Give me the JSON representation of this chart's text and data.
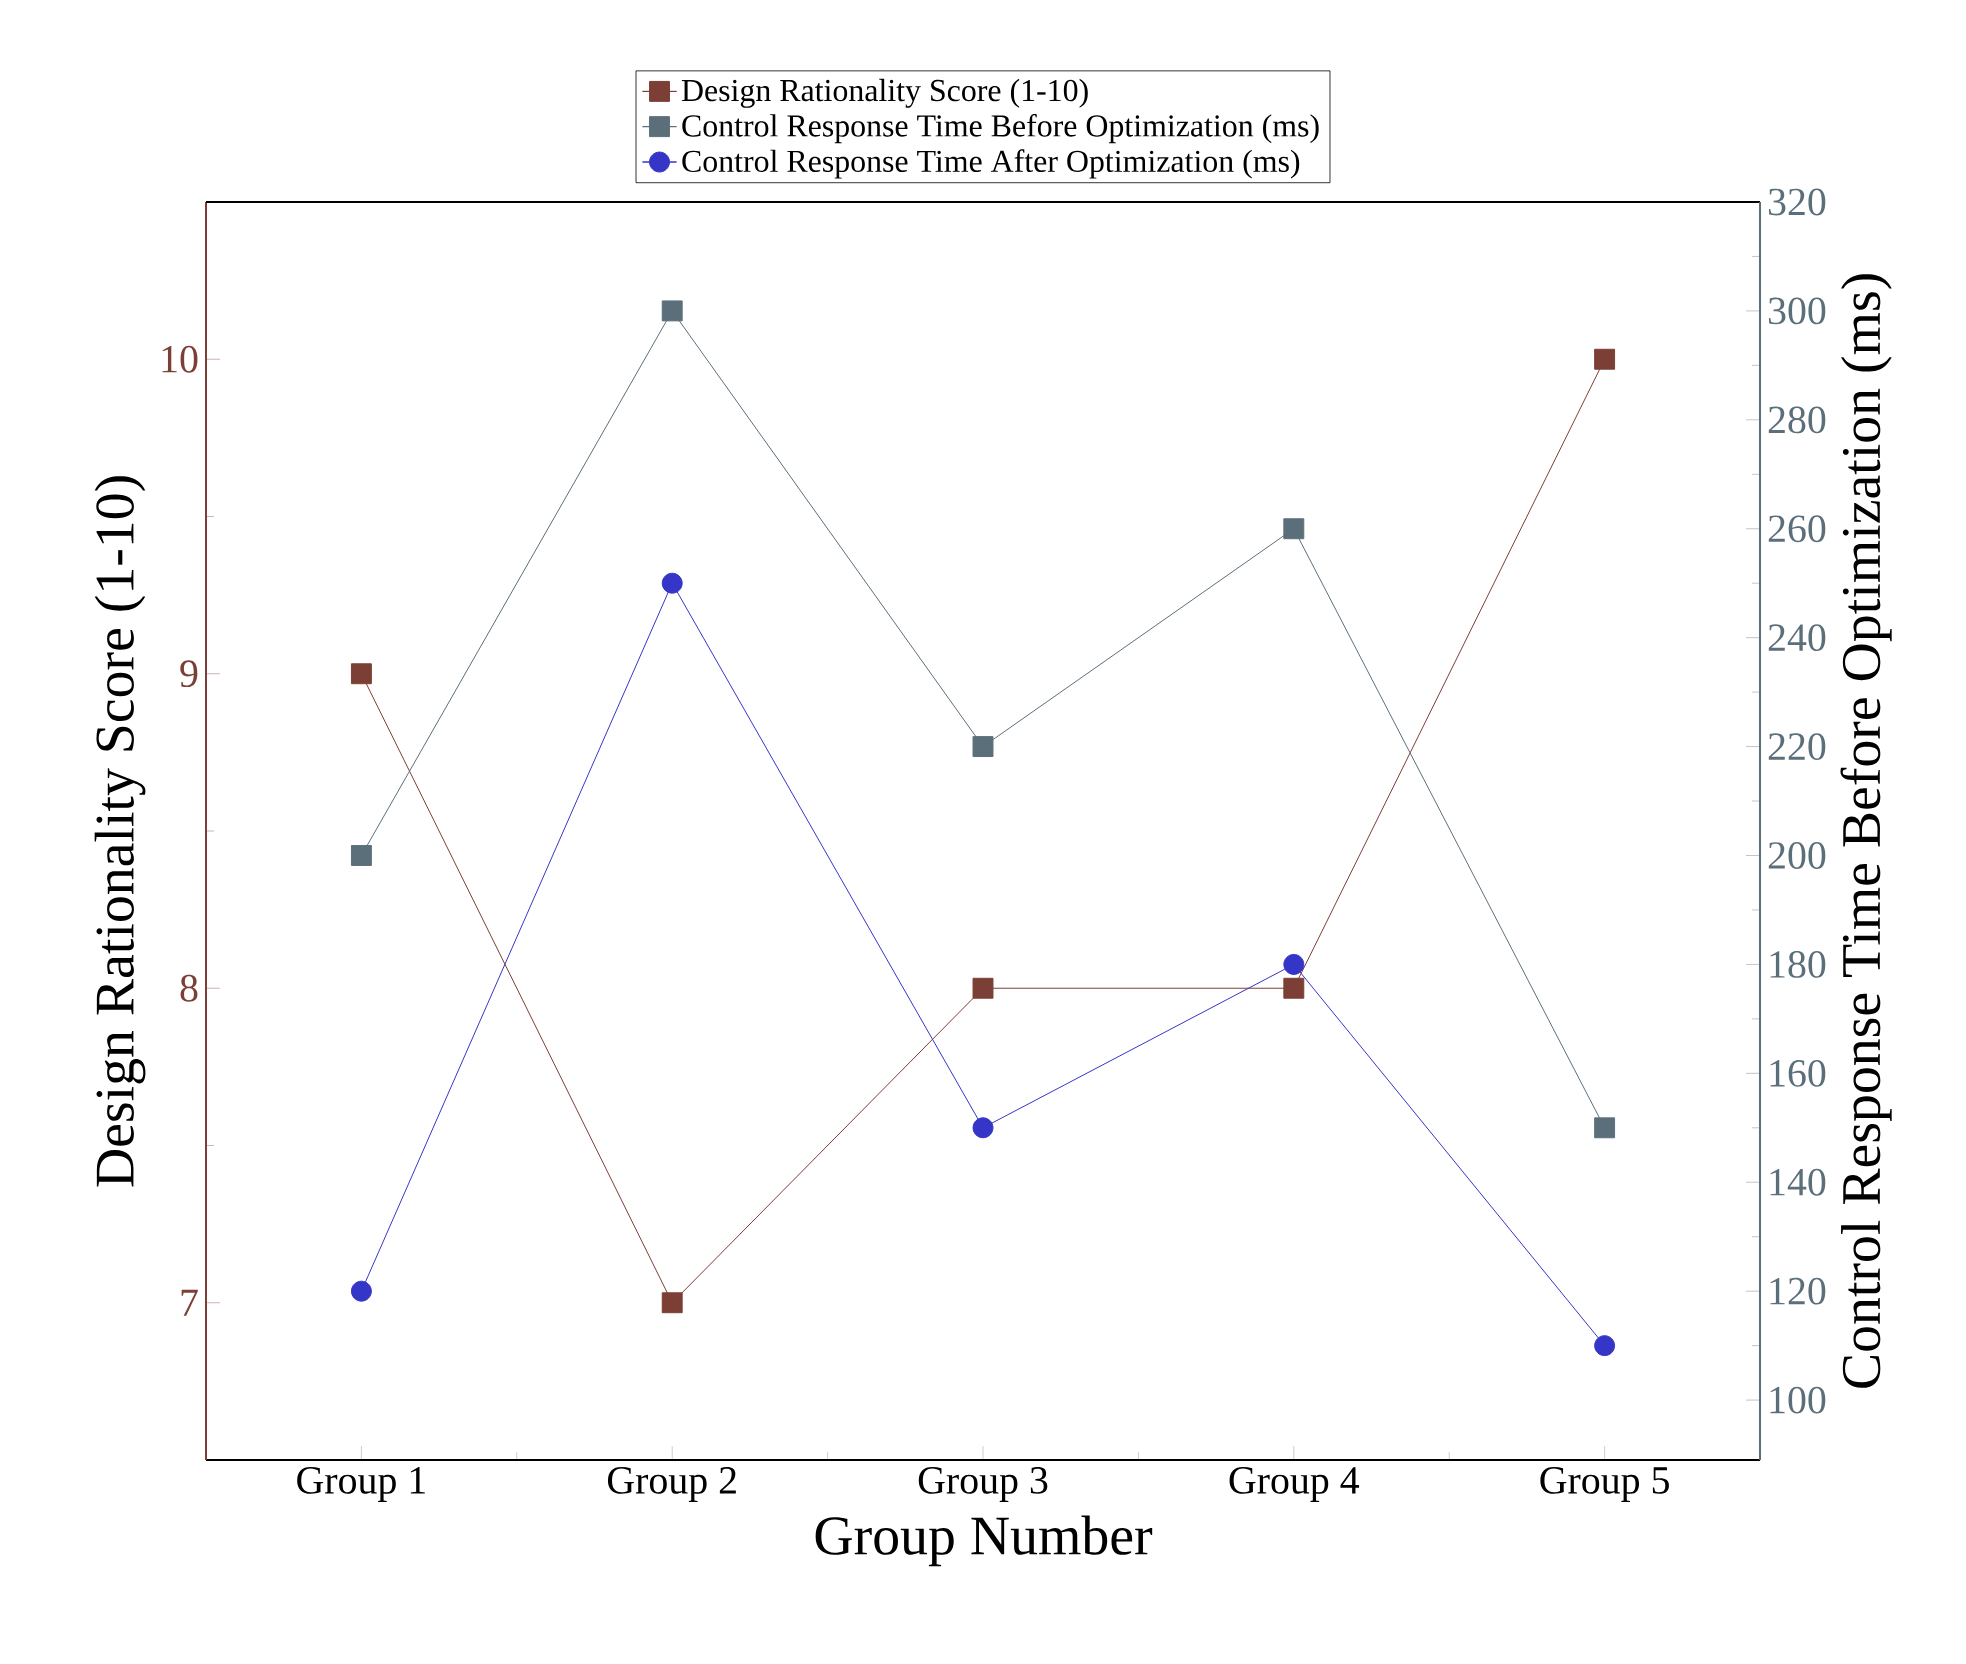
{
  "chart_data": {
    "type": "line",
    "xlabel": "Group Number",
    "ylabel": "Design Rationality Score (1-10)",
    "y2label": "Control Response Time Before Optimization (ms)",
    "categories": [
      "Group 1",
      "Group 2",
      "Group 3",
      "Group 4",
      "Group 5"
    ],
    "series": [
      {
        "name": "Design Rationality Score (1-10)",
        "color": "#7b3f35",
        "marker": "square",
        "values": [
          9,
          7,
          8,
          8,
          10
        ]
      },
      {
        "name": "Control Response Time Before Optimization (ms)",
        "color": "#5b6f7b",
        "marker": "square",
        "axis": "y2",
        "values": [
          200,
          300,
          220,
          260,
          150
        ]
      },
      {
        "name": "Control Response Time After Optimization (ms)",
        "color": "#3535c8",
        "marker": "circle",
        "axis": "y2",
        "values": [
          120,
          250,
          150,
          180,
          110
        ]
      }
    ],
    "ylim": [
      6.5,
      10.5
    ],
    "yticks": [
      7,
      8,
      9,
      10
    ],
    "y2lim": [
      89,
      320
    ],
    "y2ticks": [
      100,
      120,
      140,
      160,
      180,
      200,
      220,
      240,
      260,
      280,
      300,
      320
    ],
    "legend": "top",
    "grid": false,
    "line_style": "solid"
  }
}
